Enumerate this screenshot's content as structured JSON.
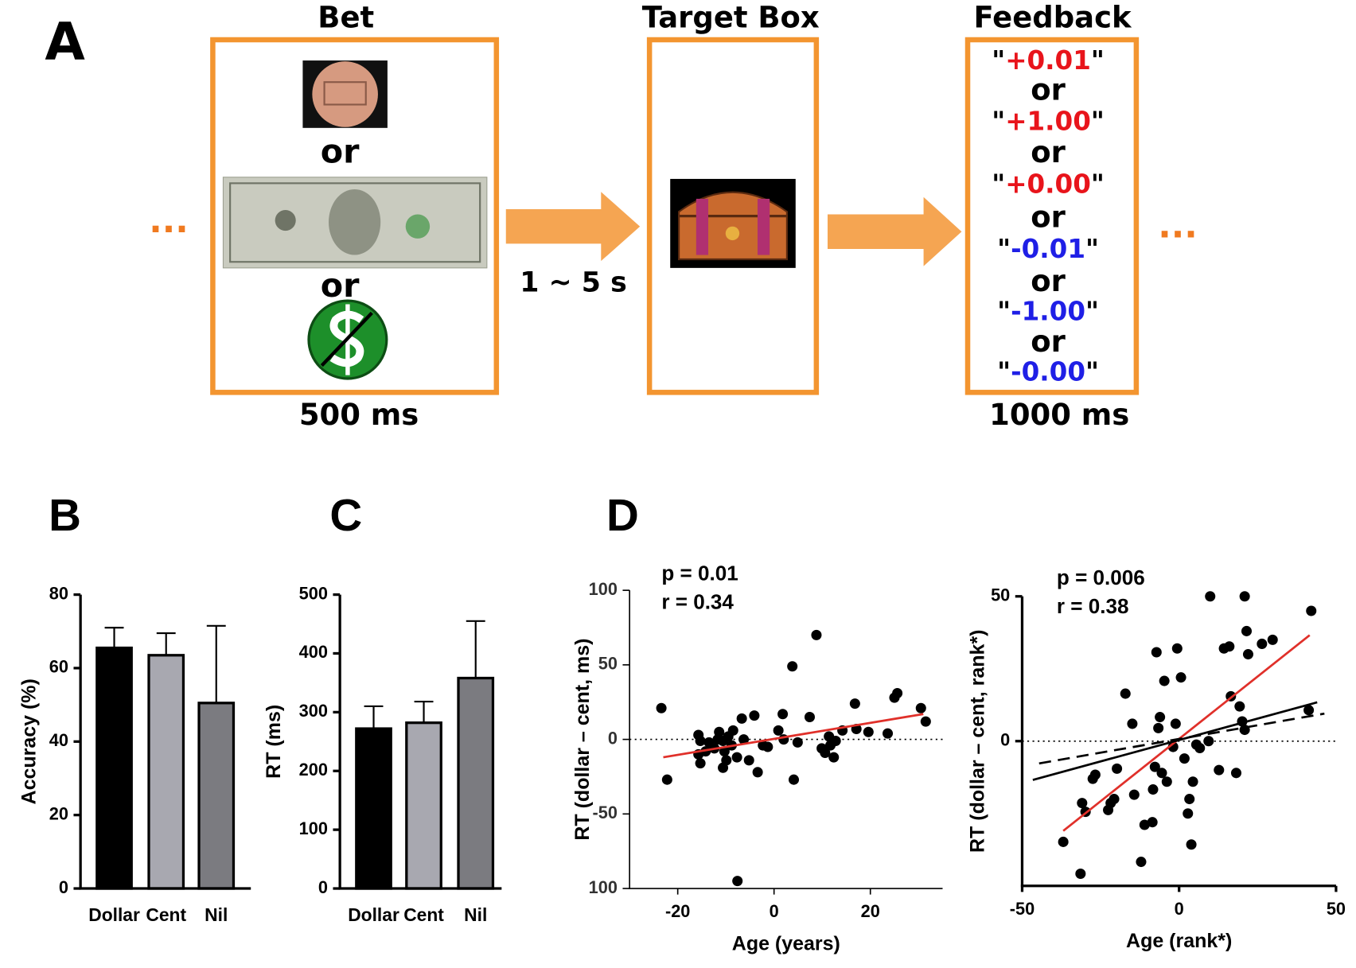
{
  "panels": {
    "a": "A",
    "b": "B",
    "c": "C",
    "d": "D"
  },
  "diagram": {
    "ellipsis": "...",
    "bet": {
      "title": "Bet",
      "or": "or",
      "duration": "500 ms"
    },
    "delay": "1 ~ 5 s",
    "target": {
      "title": "Target Box"
    },
    "feedback": {
      "title": "Feedback",
      "or": "or",
      "quote": "\"",
      "duration": "1000 ms",
      "items": [
        {
          "text": "+0.01",
          "color": "#e8141b"
        },
        {
          "text": "+1.00",
          "color": "#e8141b"
        },
        {
          "text": "+0.00",
          "color": "#e8141b"
        },
        {
          "text": "-0.01",
          "color": "#1f1fe6"
        },
        {
          "text": "-1.00",
          "color": "#1f1fe6"
        },
        {
          "text": "-0.00",
          "color": "#1f1fe6"
        }
      ]
    }
  },
  "chart_data": [
    {
      "type": "bar",
      "ylabel": "Accuracy (%)",
      "categories": [
        "Dollar",
        "Cent",
        "Nil"
      ],
      "values": [
        65.5,
        63.5,
        50.5
      ],
      "errors": [
        5.5,
        6,
        21
      ],
      "colors": [
        "#000000",
        "#a8a8b0",
        "#7b7b80"
      ],
      "ylim": [
        0,
        80
      ],
      "yticks": [
        0,
        20,
        40,
        60,
        80
      ]
    },
    {
      "type": "bar",
      "ylabel": "RT (ms)",
      "categories": [
        "Dollar",
        "Cent",
        "Nil"
      ],
      "values": [
        272,
        282,
        358
      ],
      "errors": [
        38,
        36,
        97
      ],
      "colors": [
        "#000000",
        "#a8a8b0",
        "#7b7b80"
      ],
      "ylim": [
        0,
        500
      ],
      "yticks": [
        0,
        100,
        200,
        300,
        400,
        500
      ]
    },
    {
      "type": "scatter",
      "xlabel": "Age (years)",
      "ylabel": "RT (dollar – cent, ms)",
      "annotations": [
        "p = 0.01",
        "r = 0.34"
      ],
      "xlim": [
        -30,
        35
      ],
      "xticks": [
        -20,
        0,
        20
      ],
      "ylim": [
        -100,
        100
      ],
      "yticks": [
        {
          "value": -100,
          "label": "100"
        },
        -50,
        0,
        50,
        100
      ],
      "zero_line": 0,
      "series": [
        {
          "type": "scatter",
          "color": "#000000",
          "x": [
            -23.4,
            -22.2,
            -15.7,
            -15.3,
            -15.7,
            -15.3,
            -14.2,
            -13.5,
            -12.4,
            -11.7,
            -11.4,
            -10.6,
            -10.3,
            -9.9,
            -10.6,
            -9.5,
            -8.8,
            -8.5,
            -7.7,
            -7.6,
            -6.7,
            -6.3,
            -5.2,
            -4.1,
            -3.4,
            -2.3,
            -1.3,
            0.9,
            1.8,
            2,
            3.8,
            4.1,
            4.9,
            7.4,
            8.8,
            9.9,
            10.6,
            11.4,
            11.7,
            12.4,
            12.8,
            14.2,
            16.8,
            17.1,
            19.6,
            23.6,
            25,
            25.6,
            30.5,
            31.5
          ],
          "values": [
            21,
            -27,
            3,
            -1,
            -10,
            -16,
            -8,
            -2,
            -6,
            0,
            5,
            -1,
            -8,
            -14,
            -19,
            2,
            -4,
            6,
            -12,
            -95,
            14,
            0,
            -14,
            16,
            -22,
            -4,
            -5,
            6,
            17,
            0,
            49,
            -27,
            -2,
            15,
            70,
            -6,
            -9,
            2,
            -4,
            -12,
            -1,
            6,
            24,
            7,
            5,
            4,
            28,
            31,
            21,
            12
          ]
        },
        {
          "type": "line",
          "color": "#e0302a",
          "x": [
            -23,
            31
          ],
          "values": [
            -12,
            17
          ]
        }
      ]
    },
    {
      "type": "scatter",
      "xlabel": "Age (rank*)",
      "ylabel": "RT (dollar – cent, rank*)",
      "annotations": [
        "p = 0.006",
        "r = 0.38"
      ],
      "xlim": [
        -50,
        50
      ],
      "xticks": [
        -50,
        0,
        50
      ],
      "ylim": [
        -50,
        50
      ],
      "yticks": [
        0,
        50
      ],
      "zero_line": 0,
      "series": [
        {
          "type": "scatter",
          "color": "#000000",
          "x": [
            -36.9,
            -31.4,
            -30.9,
            -29.8,
            -27.5,
            -26.7,
            -22.6,
            -21.8,
            -20.7,
            -19.8,
            -17.1,
            -14.9,
            -14.3,
            -12.1,
            -11,
            -8.5,
            -8.3,
            -7.7,
            -7.2,
            -6.6,
            -6.1,
            -5.5,
            -4.7,
            -3.9,
            -1.9,
            -1.1,
            -0.6,
            0.6,
            1.7,
            2.8,
            3.3,
            3.9,
            4.4,
            5.5,
            6.6,
            9.4,
            9.9,
            12.7,
            14.3,
            16,
            16.5,
            18.2,
            19.3,
            20.1,
            20.9,
            20.9,
            21.5,
            22,
            26.4,
            29.8,
            41.3,
            42.1
          ],
          "values": [
            -34.8,
            -45.8,
            -21.4,
            -24.4,
            -13,
            -11.6,
            -23.8,
            -21.4,
            -20,
            -9.5,
            16.4,
            6,
            -18.5,
            -41.7,
            -28.9,
            -28,
            -16.7,
            -8.9,
            30.7,
            4.5,
            8.3,
            -11,
            20.8,
            -14,
            -2,
            6,
            32,
            22,
            -6,
            -25,
            -20,
            -35.7,
            -14,
            -1.2,
            -2.4,
            0,
            50,
            -10,
            32,
            32.7,
            15.5,
            -11,
            12,
            6.8,
            50,
            3.9,
            38,
            30,
            33.6,
            35,
            10.7,
            45
          ]
        },
        {
          "type": "line",
          "color": "#e0302a",
          "x": [
            -36.9,
            41.6
          ],
          "values": [
            -31,
            36.6
          ]
        },
        {
          "type": "line",
          "color": "#000000",
          "x": [
            -46.6,
            44
          ],
          "values": [
            -13.4,
            13.4
          ]
        },
        {
          "type": "line",
          "color": "#000000",
          "dashed": true,
          "x": [
            -44.6,
            46.3
          ],
          "values": [
            -7.7,
            9.5
          ]
        }
      ]
    }
  ]
}
